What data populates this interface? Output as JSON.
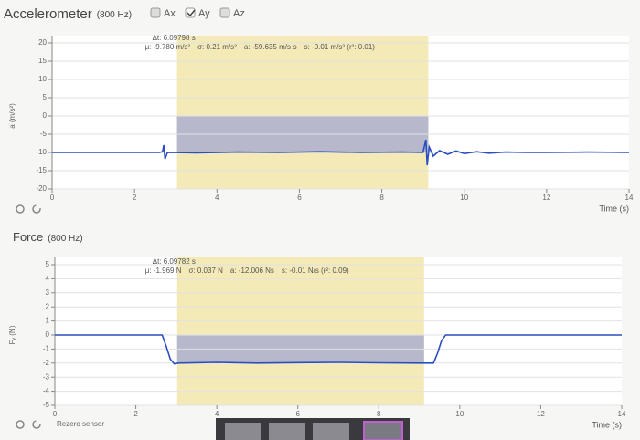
{
  "header": {
    "channels": [
      {
        "label": "Ax",
        "checked": false
      },
      {
        "label": "Ay",
        "checked": true
      },
      {
        "label": "Az",
        "checked": false
      }
    ]
  },
  "controls": {
    "rezero": "Rezero sensor"
  },
  "chart_data": [
    {
      "type": "line",
      "title": "Accelerometer",
      "subtitle": "(800 Hz)",
      "ylabel": "a (m/s²)",
      "xlabel": "Time (s)",
      "xlim": [
        0,
        14
      ],
      "xticks": [
        0,
        2,
        4,
        6,
        8,
        10,
        12,
        14
      ],
      "ylim": [
        -20,
        20
      ],
      "yticks": [
        -20,
        -15,
        -10,
        -5,
        0,
        5,
        10,
        15,
        20
      ],
      "grid": true,
      "color": "#2b4fc0",
      "x": [
        0,
        2.6,
        2.68,
        2.71,
        2.74,
        2.8,
        3.5,
        4.5,
        5.5,
        6.5,
        7.5,
        8.5,
        9.0,
        9.07,
        9.1,
        9.15,
        9.25,
        9.4,
        9.6,
        9.8,
        10,
        10.3,
        10.6,
        11,
        11.5,
        12,
        13,
        14
      ],
      "values": [
        -10,
        -10,
        -9.8,
        -8,
        -11.8,
        -10,
        -10.1,
        -9.9,
        -10,
        -9.8,
        -10,
        -9.9,
        -10,
        -6.5,
        -13.5,
        -8.5,
        -11,
        -9.5,
        -10.5,
        -9.6,
        -10.3,
        -9.8,
        -10.2,
        -9.9,
        -10,
        -10,
        -9.9,
        -10
      ],
      "selection": [
        3.03,
        9.128
      ],
      "stats": [
        {
          "value": 6.09798,
          "label": "Δt: 6.09798 s"
        },
        {
          "value": -9.78,
          "label": "μ: -9.780 m/s²"
        },
        {
          "value": 0.21,
          "label": "σ: 0.21 m/s²"
        },
        {
          "value": -59.635,
          "label": "a: -59.635 m/s·s"
        },
        {
          "value": -0.01,
          "label": "s: -0.01 m/s³ (r²: 0.01)"
        }
      ]
    },
    {
      "type": "line",
      "title": "Force",
      "subtitle": "(800 Hz)",
      "ylabel": "Fᵧ (N)",
      "xlabel": "Time (s)",
      "xlim": [
        0,
        14
      ],
      "xticks": [
        0,
        2,
        4,
        6,
        8,
        10,
        12,
        14
      ],
      "ylim": [
        -5,
        5
      ],
      "yticks": [
        -5,
        -4,
        -3,
        -2,
        -1,
        0,
        1,
        2,
        3,
        4,
        5
      ],
      "grid": true,
      "color": "#2b4fc0",
      "x": [
        0,
        2.65,
        2.75,
        2.85,
        2.95,
        3.05,
        4,
        5,
        6,
        7,
        8,
        9,
        9.35,
        9.45,
        9.55,
        9.65,
        14
      ],
      "values": [
        0,
        0,
        -0.8,
        -1.7,
        -2.05,
        -2.0,
        -1.95,
        -2.0,
        -1.97,
        -1.95,
        -1.98,
        -2.0,
        -2.0,
        -1.3,
        -0.4,
        0,
        0
      ],
      "selection": [
        3.02,
        9.118
      ],
      "stats": [
        {
          "value": 6.09782,
          "label": "Δt: 6.09782 s"
        },
        {
          "value": -1.969,
          "label": "μ: -1.969 N"
        },
        {
          "value": 0.037,
          "label": "σ: 0.037 N"
        },
        {
          "value": -12.006,
          "label": "a: -12.006 Ns"
        },
        {
          "value": -0.01,
          "label": "s: -0.01 N/s (r²: 0.09)"
        }
      ]
    }
  ]
}
